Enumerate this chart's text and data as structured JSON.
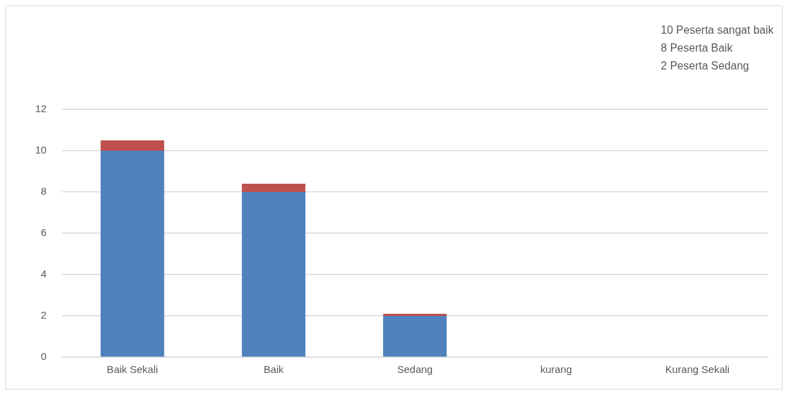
{
  "chart_data": {
    "type": "bar",
    "stacked": true,
    "categories": [
      "Baik Sekali",
      "Baik",
      "Sedang",
      "kurang",
      "Kurang Sekali"
    ],
    "series": [
      {
        "color": "#4f81bd",
        "values": [
          10,
          8,
          2,
          0,
          0
        ]
      },
      {
        "color": "#c0504d",
        "values": [
          0.5,
          0.4,
          0.1,
          0,
          0
        ]
      }
    ],
    "ylim": [
      0,
      12
    ],
    "yticks": [
      0,
      2,
      4,
      6,
      8,
      10,
      12
    ],
    "grid": "y",
    "legend": false,
    "annotations": [
      "10 Peserta sangat baik",
      "8 Peserta Baik",
      "2 Peserta Sedang"
    ]
  }
}
